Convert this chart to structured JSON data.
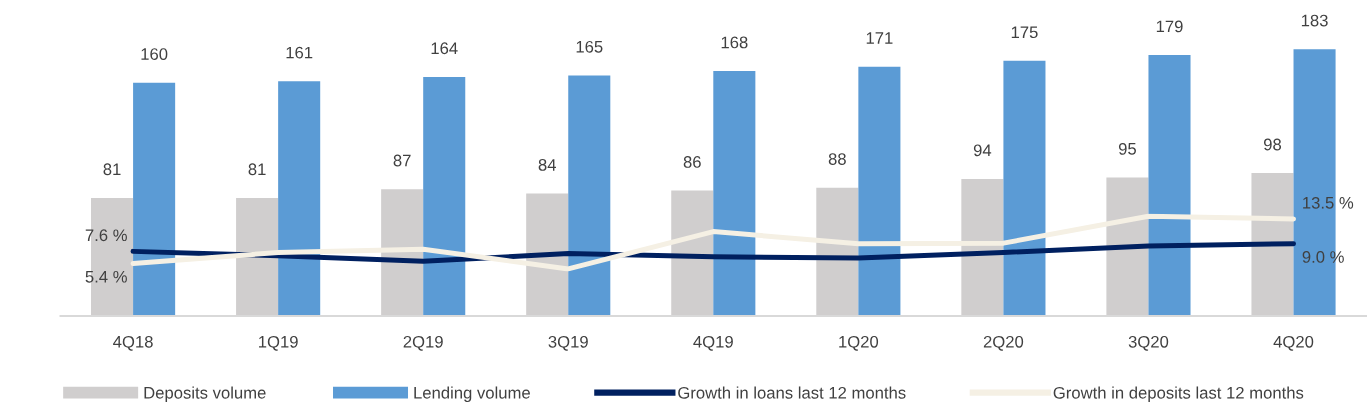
{
  "chart_data": {
    "type": "bar",
    "categories": [
      "4Q18",
      "1Q19",
      "2Q19",
      "3Q19",
      "4Q19",
      "1Q20",
      "2Q20",
      "3Q20",
      "4Q20"
    ],
    "series": [
      {
        "name": "Deposits volume",
        "color": "#d0cece",
        "values": [
          81,
          81,
          87,
          84,
          86,
          88,
          94,
          95,
          98
        ],
        "value_labels": [
          "81",
          "81",
          "87",
          "84",
          "86",
          "88",
          "94",
          "95",
          "98"
        ]
      },
      {
        "name": "Lending volume",
        "color": "#5b9bd5",
        "values": [
          160,
          161,
          164,
          165,
          168,
          171,
          175,
          179,
          183
        ],
        "value_labels": [
          "160",
          "161",
          "164",
          "165",
          "168",
          "171",
          "175",
          "179",
          "183"
        ]
      },
      {
        "name": "Growth in loans last 12 months",
        "type": "line",
        "axis": "y2",
        "color": "#002060",
        "values": [
          7.6,
          6.8,
          5.8,
          7.2,
          6.6,
          6.4,
          7.4,
          8.6,
          9.0
        ],
        "value_labels": [
          "7.6 %",
          null,
          null,
          null,
          null,
          null,
          null,
          null,
          "9.0 %"
        ]
      },
      {
        "name": "Growth in deposits last 12 months",
        "type": "line",
        "axis": "y2",
        "color": "#f5f0e4",
        "values": [
          5.4,
          7.4,
          8.0,
          4.4,
          11.2,
          9.0,
          9.1,
          14.0,
          13.5
        ],
        "value_labels": [
          "5.4 %",
          null,
          null,
          null,
          null,
          null,
          null,
          null,
          "13.5 %"
        ]
      }
    ],
    "tick_labels": "x",
    "legend": "bottom",
    "line_style": "solid"
  }
}
